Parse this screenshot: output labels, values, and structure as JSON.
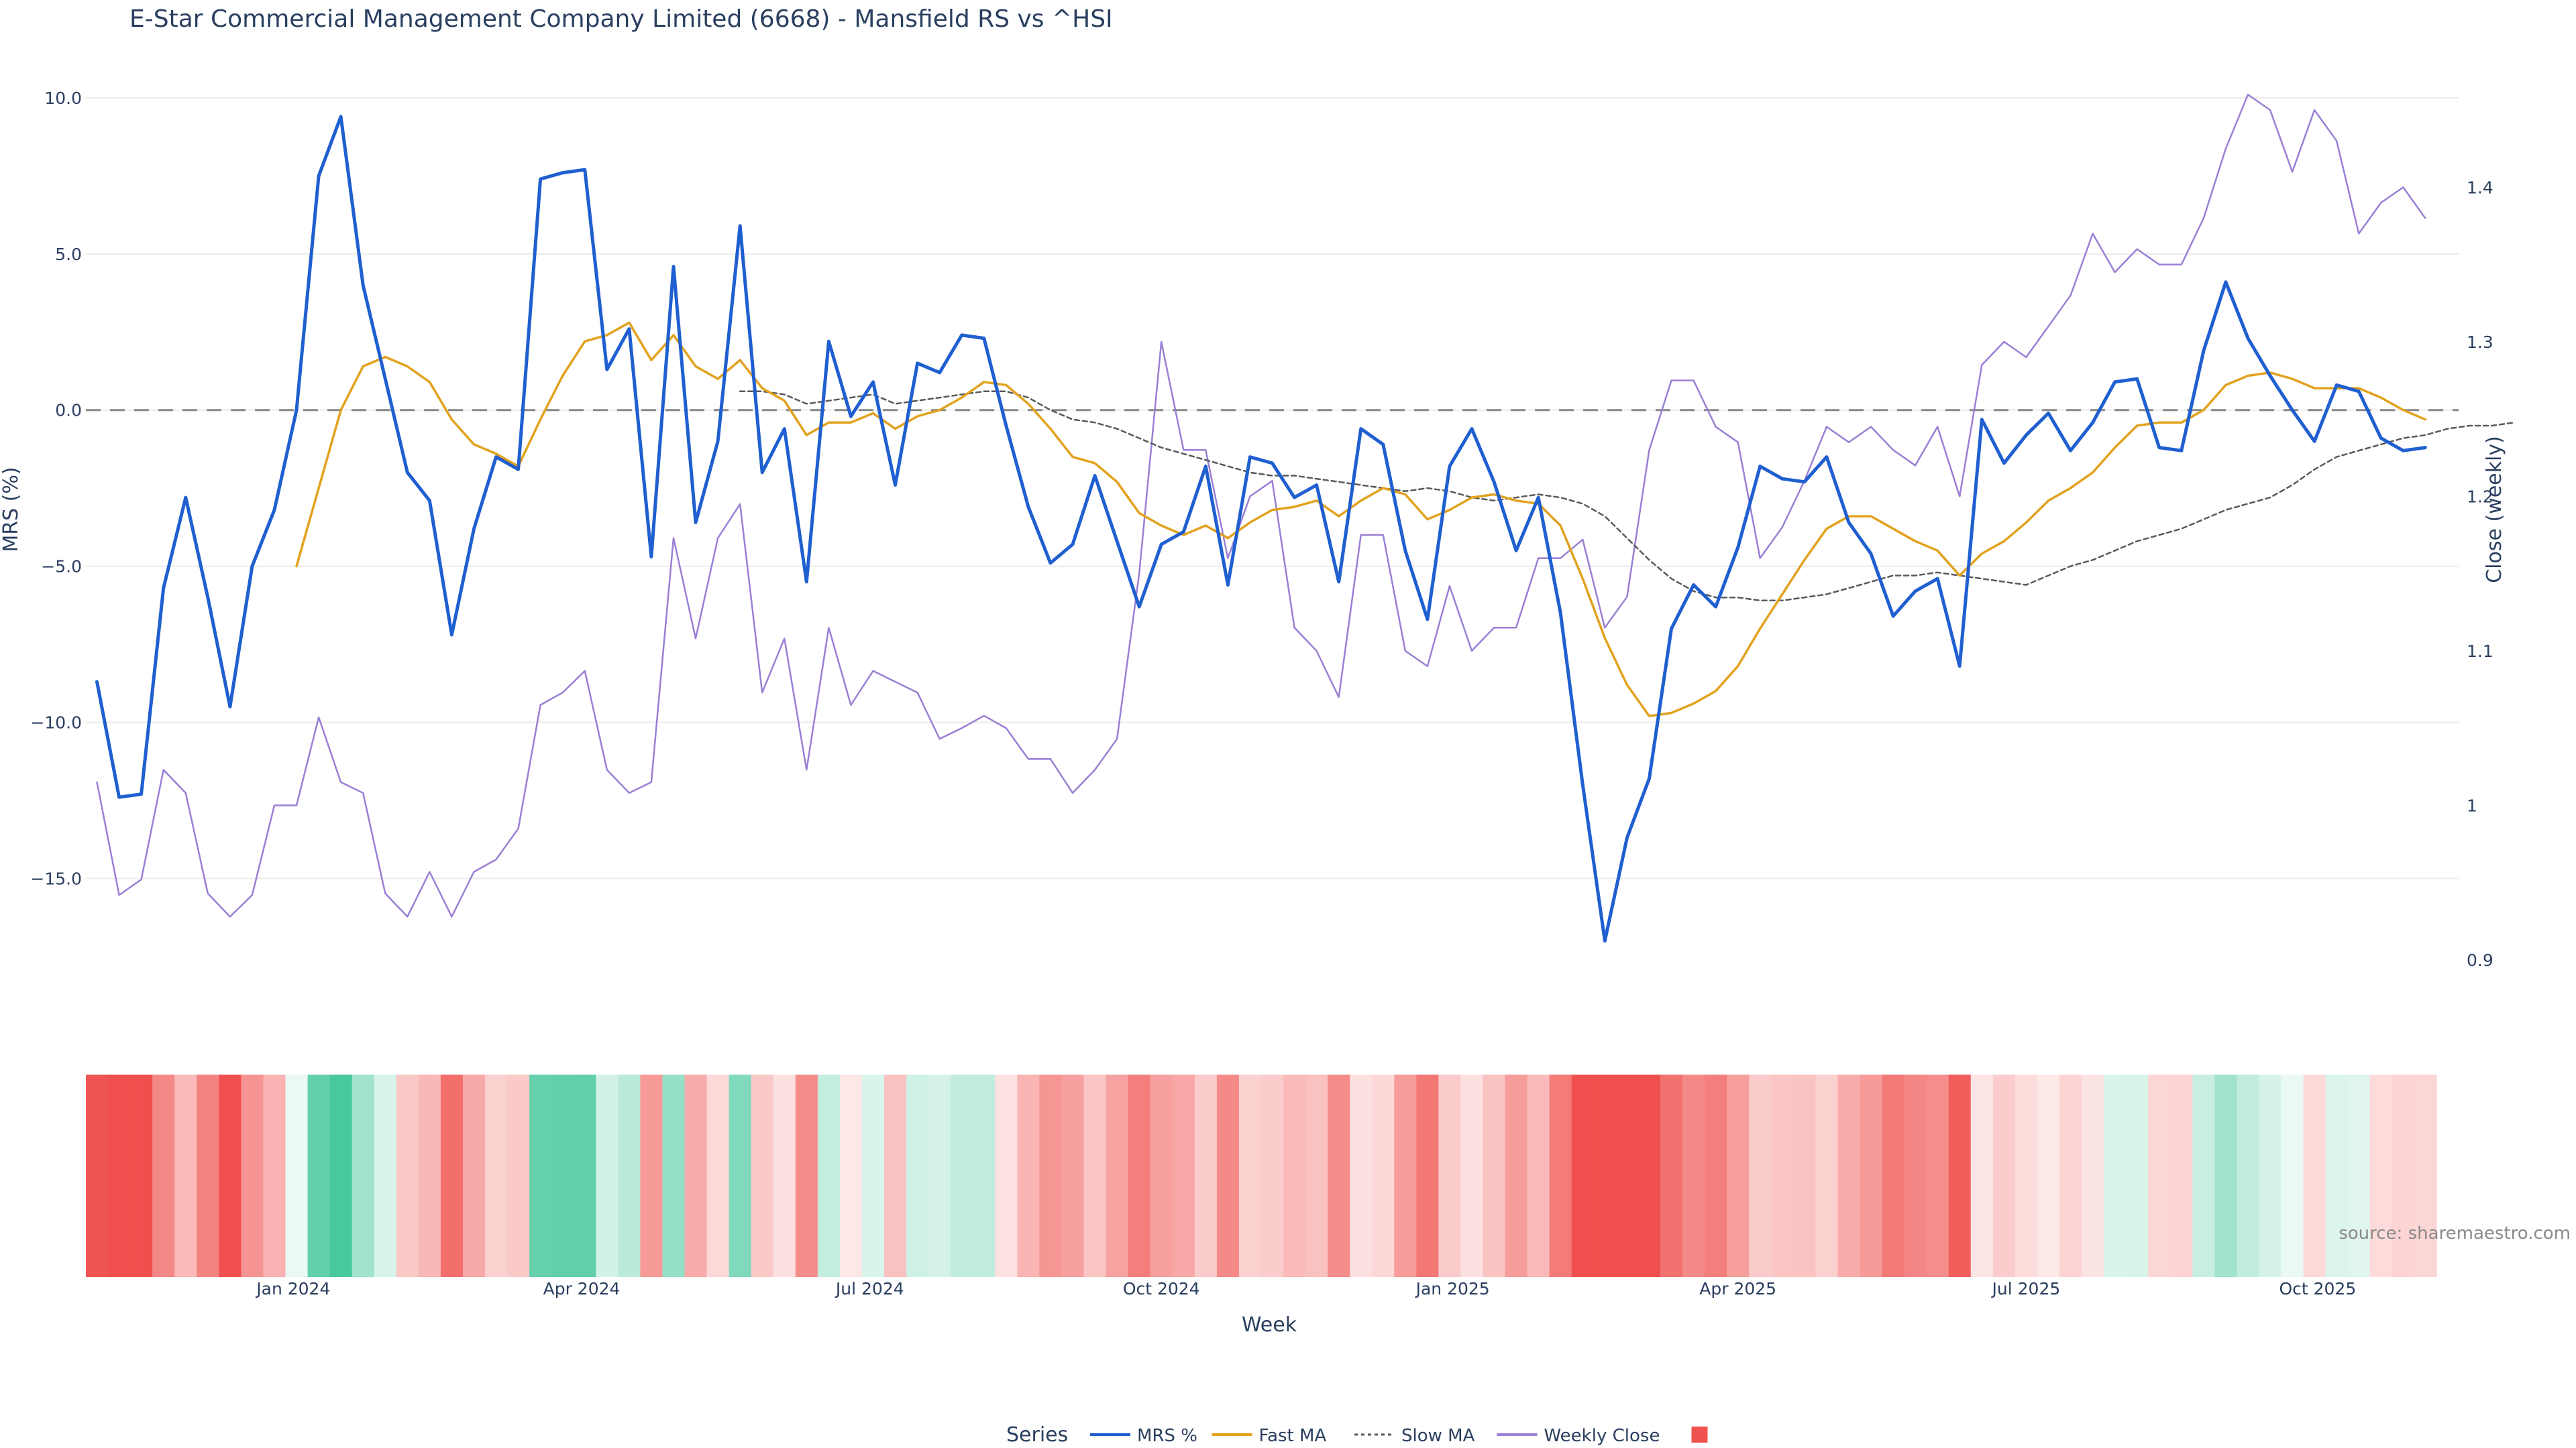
{
  "chart_data": {
    "type": "line",
    "title": "E-Star Commercial Management Company Limited (6668) - Mansfield RS vs ^HSI",
    "xlabel": "Week",
    "ylabel": "MRS (%)",
    "y2label": "Close (weekly)",
    "ylim": [
      -18.6,
      10.6
    ],
    "y2lim": [
      0.88,
      1.47
    ],
    "yticks": [
      10,
      5,
      0,
      -5,
      -10,
      -15
    ],
    "ytick_labels": [
      "10.0",
      "5.0",
      "0.0",
      "−5.0",
      "−10.0",
      "−15.0"
    ],
    "y2ticks": [
      1.4,
      1.3,
      1.2,
      1.1,
      1.0,
      0.9
    ],
    "y2tick_labels": [
      "1.4",
      "1.3",
      "1.2",
      "1.1",
      "1",
      "0.9"
    ],
    "x_tick_labels": [
      "Jan 2024",
      "Apr 2024",
      "Jul 2024",
      "Oct 2024",
      "Jan 2025",
      "Apr 2025",
      "Jul 2025",
      "Oct 2025"
    ],
    "x_tick_weeks": [
      8.857,
      21.857,
      34.857,
      48,
      61.143,
      74,
      87,
      100.143
    ],
    "weeks": 107,
    "zero_line": 0,
    "series": [
      {
        "name": "MRS %",
        "axis": "y",
        "color": "#1f5fd0",
        "dash": "solid",
        "width": 5,
        "start": 0,
        "values": [
          -8.7,
          -12.4,
          -12.3,
          -5.7,
          -2.8,
          -6.0,
          -9.5,
          -5.0,
          -3.2,
          0.0,
          7.5,
          9.4,
          4.0,
          1.0,
          -2.0,
          -2.9,
          -7.2,
          -3.8,
          -1.5,
          -1.9,
          7.4,
          7.6,
          7.7,
          1.3,
          2.6,
          -4.7,
          4.6,
          -3.6,
          -1.0,
          5.9,
          -2.0,
          -0.6,
          -5.5,
          2.2,
          -0.2,
          0.9,
          -2.4,
          1.5,
          1.2,
          2.4,
          2.3,
          -0.5,
          -3.1,
          -4.9,
          -4.3,
          -2.1,
          -4.2,
          -6.3,
          -4.3,
          -3.9,
          -1.8,
          -5.6,
          -1.5,
          -1.7,
          -2.8,
          -2.4,
          -5.5,
          -0.6,
          -1.1,
          -4.5,
          -6.7,
          -1.8,
          -0.6,
          -2.3,
          -4.5,
          -2.8,
          -6.5,
          -12.0,
          -17.0,
          -13.7,
          -11.8,
          -7.0,
          -5.6,
          -6.3,
          -4.4,
          -1.8,
          -2.2,
          -2.3,
          -1.5,
          -3.6,
          -4.6,
          -6.6,
          -5.8,
          -5.4,
          -8.2,
          -0.3,
          -1.7,
          -0.8,
          -0.1,
          -1.3,
          -0.4,
          0.9,
          1.0,
          -1.2,
          -1.3,
          1.9,
          4.1,
          2.3,
          1.1,
          0.0,
          -1.0,
          0.8,
          0.6,
          -0.9,
          -1.3,
          -1.2
        ]
      },
      {
        "name": "Fast MA",
        "axis": "y",
        "color": "#e2a21e",
        "dash": "solid",
        "width": 3.5,
        "start": 9,
        "values": [
          -5.0,
          -2.5,
          0.0,
          1.4,
          1.7,
          1.4,
          0.9,
          -0.3,
          -1.1,
          -1.4,
          -1.8,
          -0.3,
          1.1,
          2.2,
          2.4,
          2.8,
          1.6,
          2.4,
          1.4,
          1.0,
          1.6,
          0.7,
          0.3,
          -0.8,
          -0.4,
          -0.4,
          -0.1,
          -0.6,
          -0.2,
          0.0,
          0.4,
          0.9,
          0.8,
          0.2,
          -0.6,
          -1.5,
          -1.7,
          -2.3,
          -3.3,
          -3.7,
          -4.0,
          -3.7,
          -4.1,
          -3.6,
          -3.2,
          -3.1,
          -2.9,
          -3.4,
          -2.9,
          -2.5,
          -2.7,
          -3.5,
          -3.2,
          -2.8,
          -2.7,
          -2.9,
          -3.0,
          -3.7,
          -5.4,
          -7.3,
          -8.8,
          -9.8,
          -9.7,
          -9.4,
          -9.0,
          -8.2,
          -7.0,
          -5.9,
          -4.8,
          -3.8,
          -3.4,
          -3.4,
          -3.8,
          -4.2,
          -4.5,
          -5.3,
          -4.6,
          -4.2,
          -3.6,
          -2.9,
          -2.5,
          -2.0,
          -1.2,
          -0.5,
          -0.4,
          -0.4,
          0.0,
          0.8,
          1.1,
          1.2,
          1.0,
          0.7,
          0.7,
          0.7,
          0.4,
          0.0,
          -0.3
        ]
      },
      {
        "name": "Slow MA",
        "axis": "y",
        "color": "#5a5a5a",
        "dash": "7,5",
        "width": 2.5,
        "start": 29,
        "values": [
          0.6,
          0.6,
          0.5,
          0.2,
          0.3,
          0.4,
          0.5,
          0.2,
          0.3,
          0.4,
          0.5,
          0.6,
          0.6,
          0.4,
          0.0,
          -0.3,
          -0.4,
          -0.6,
          -0.9,
          -1.2,
          -1.4,
          -1.6,
          -1.8,
          -2.0,
          -2.1,
          -2.1,
          -2.2,
          -2.3,
          -2.4,
          -2.5,
          -2.6,
          -2.5,
          -2.6,
          -2.8,
          -2.9,
          -2.8,
          -2.7,
          -2.8,
          -3.0,
          -3.4,
          -4.1,
          -4.8,
          -5.4,
          -5.8,
          -6.0,
          -6.0,
          -6.1,
          -6.1,
          -6.0,
          -5.9,
          -5.7,
          -5.5,
          -5.3,
          -5.3,
          -5.2,
          -5.3,
          -5.4,
          -5.5,
          -5.6,
          -5.3,
          -5.0,
          -4.8,
          -4.5,
          -4.2,
          -4.0,
          -3.8,
          -3.5,
          -3.2,
          -3.0,
          -2.8,
          -2.4,
          -1.9,
          -1.5,
          -1.3,
          -1.1,
          -0.9,
          -0.8,
          -0.6,
          -0.5,
          -0.5,
          -0.4
        ]
      },
      {
        "name": "Weekly Close",
        "axis": "y2",
        "color": "#9b7fd4",
        "dash": "solid",
        "width": 2.5,
        "start": 0,
        "values": [
          1.015,
          0.942,
          0.952,
          1.023,
          1.008,
          0.943,
          0.928,
          0.942,
          1.0,
          1.0,
          1.057,
          1.015,
          1.008,
          0.943,
          0.928,
          0.957,
          0.928,
          0.957,
          0.965,
          0.985,
          1.065,
          1.073,
          1.087,
          1.023,
          1.008,
          1.015,
          1.173,
          1.108,
          1.173,
          1.195,
          1.073,
          1.108,
          1.023,
          1.115,
          1.065,
          1.087,
          1.08,
          1.073,
          1.043,
          1.05,
          1.058,
          1.05,
          1.03,
          1.03,
          1.008,
          1.023,
          1.043,
          1.15,
          1.3,
          1.23,
          1.23,
          1.16,
          1.2,
          1.21,
          1.115,
          1.1,
          1.07,
          1.175,
          1.175,
          1.1,
          1.09,
          1.142,
          1.1,
          1.115,
          1.115,
          1.16,
          1.16,
          1.172,
          1.115,
          1.135,
          1.23,
          1.275,
          1.275,
          1.245,
          1.235,
          1.16,
          1.18,
          1.21,
          1.245,
          1.235,
          1.245,
          1.23,
          1.22,
          1.245,
          1.2,
          1.285,
          1.3,
          1.29,
          1.31,
          1.33,
          1.37,
          1.345,
          1.36,
          1.35,
          1.35,
          1.38,
          1.425,
          1.46,
          1.45,
          1.41,
          1.45,
          1.43,
          1.37,
          1.39,
          1.4,
          1.38
        ]
      }
    ],
    "heatmap": {
      "description": "MRS strip colored by value",
      "values": [
        -8.7,
        -12.4,
        -12.3,
        -5.7,
        -2.8,
        -6.0,
        -9.5,
        -5.0,
        -3.2,
        0.0,
        7.5,
        9.4,
        4.0,
        1.0,
        -2.0,
        -2.9,
        -7.2,
        -3.8,
        -1.5,
        -1.9,
        7.4,
        7.6,
        7.7,
        1.3,
        2.6,
        -4.7,
        4.6,
        -3.6,
        -1.0,
        5.9,
        -2.0,
        -0.6,
        -5.5,
        2.2,
        -0.2,
        0.9,
        -2.4,
        1.5,
        1.2,
        2.4,
        2.3,
        -0.5,
        -3.1,
        -4.9,
        -4.3,
        -2.1,
        -4.2,
        -6.3,
        -4.3,
        -3.9,
        -1.8,
        -5.6,
        -1.5,
        -1.7,
        -2.8,
        -2.4,
        -5.5,
        -0.6,
        -1.1,
        -4.5,
        -6.7,
        -1.8,
        -0.6,
        -2.3,
        -4.5,
        -2.8,
        -6.5,
        -12.0,
        -17.0,
        -13.7,
        -11.8,
        -7.0,
        -5.6,
        -6.3,
        -4.4,
        -1.8,
        -2.2,
        -2.3,
        -1.5,
        -3.6,
        -4.6,
        -6.6,
        -5.8,
        -5.4,
        -8.2,
        -0.3,
        -1.7,
        -0.8,
        -0.1,
        -1.3,
        -0.4,
        0.9,
        1.0,
        -1.2,
        -1.3,
        1.9,
        4.1,
        2.3,
        1.1,
        0.0,
        -1.0,
        0.8,
        0.6,
        -0.9,
        -1.3,
        -1.2
      ],
      "neg_color": "#ef5350",
      "pos_color": "#4cc9a0"
    },
    "legend": {
      "title": "Series",
      "placement": "bottom-center",
      "items": [
        {
          "label": "MRS %",
          "color": "#1f5fd0",
          "dash": "solid"
        },
        {
          "label": "Fast MA",
          "color": "#e2a21e",
          "dash": "solid"
        },
        {
          "label": "Slow MA",
          "color": "#5a5a5a",
          "dash": "dotted"
        },
        {
          "label": "Weekly Close",
          "color": "#9b7fd4",
          "dash": "solid"
        },
        {
          "label": "",
          "color": "#ef5350",
          "marker": "square"
        }
      ]
    },
    "source": "source: sharemaestro.com"
  }
}
